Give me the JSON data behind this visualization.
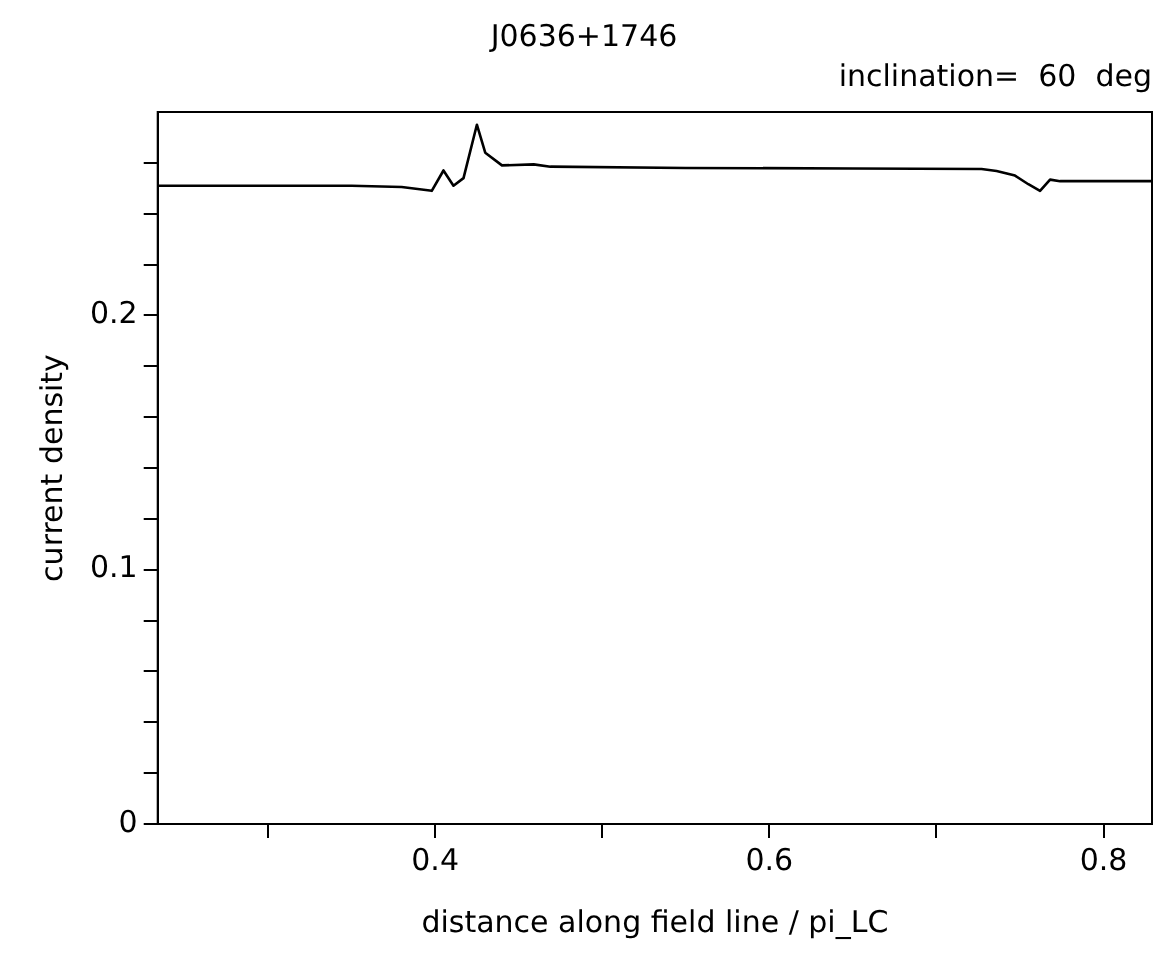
{
  "chart_data": {
    "type": "line",
    "title": "J0636+1746",
    "subtitle": "inclination=  60  deg",
    "xlabel": "distance along field line / pi_LC",
    "ylabel": "current density",
    "x": [
      0.234,
      0.3,
      0.35,
      0.38,
      0.398,
      0.405,
      0.411,
      0.417,
      0.425,
      0.43,
      0.44,
      0.459,
      0.469,
      0.55,
      0.65,
      0.727,
      0.736,
      0.747,
      0.755,
      0.762,
      0.768,
      0.774,
      0.8,
      0.829
    ],
    "series": [
      {
        "color": "#000000",
        "values": [
          0.251,
          0.251,
          0.251,
          0.2505,
          0.249,
          0.257,
          0.251,
          0.254,
          0.275,
          0.264,
          0.259,
          0.2594,
          0.2585,
          0.258,
          0.2578,
          0.2576,
          0.2568,
          0.255,
          0.2516,
          0.249,
          0.2534,
          0.2528,
          0.2528,
          0.2528
        ]
      }
    ],
    "xlim": [
      0.234,
      0.829
    ],
    "xticks": [
      {
        "value": 0.3,
        "label": null
      },
      0.4,
      {
        "value": 0.5,
        "label": null
      },
      0.6,
      {
        "value": 0.7,
        "label": null
      },
      0.8
    ],
    "ylim": [
      0,
      0.28
    ],
    "yticks": [
      0,
      {
        "value": 0.02,
        "label": null
      },
      {
        "value": 0.04,
        "label": null
      },
      {
        "value": 0.06,
        "label": null
      },
      {
        "value": 0.08,
        "label": null
      },
      0.1,
      {
        "value": 0.12,
        "label": null
      },
      {
        "value": 0.14,
        "label": null
      },
      {
        "value": 0.16,
        "label": null
      },
      {
        "value": 0.18,
        "label": null
      },
      0.2,
      {
        "value": 0.22,
        "label": null
      },
      {
        "value": 0.24,
        "label": null
      },
      {
        "value": 0.26,
        "label": null
      }
    ],
    "grid": false,
    "legend": false,
    "marker": "none",
    "line_style": "solid"
  }
}
